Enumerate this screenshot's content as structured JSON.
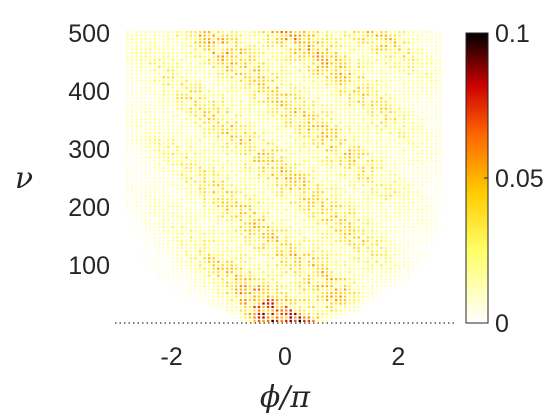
{
  "chart_data": {
    "type": "heatmap",
    "title": "",
    "xlabel": "ϕ/π",
    "ylabel": "ν",
    "xlim": [
      -3,
      3
    ],
    "ylim": [
      0,
      500
    ],
    "xticks": [
      -2,
      0,
      2
    ],
    "yticks": [
      100,
      200,
      300,
      400,
      500
    ],
    "xtick_labels": [
      "-2",
      "0",
      "2"
    ],
    "ytick_labels": [
      "100",
      "200",
      "300",
      "400",
      "500"
    ],
    "colorbar": {
      "range": [
        0,
        0.1
      ],
      "ticks": [
        0,
        0.05,
        0.1
      ],
      "tick_labels": [
        "0",
        "0.05",
        "0.1"
      ],
      "colormap": "hot (reversed)",
      "colors": [
        "#ffffff",
        "#ffff66",
        "#ffcc00",
        "#ff6600",
        "#cc0000",
        "#000000"
      ]
    },
    "reference_line": {
      "style": "dotted",
      "y": 0
    },
    "description_grid": {
      "x_support": [
        -2.8,
        2.8
      ],
      "rows": [
        {
          "nu": 5,
          "peak": 0.1,
          "width": 0.7
        },
        {
          "nu": 20,
          "peak": 0.07,
          "width": 1.0
        },
        {
          "nu": 40,
          "peak": 0.06,
          "width": 1.3
        },
        {
          "nu": 60,
          "peak": 0.05,
          "width": 1.6
        },
        {
          "nu": 80,
          "peak": 0.045,
          "width": 1.8
        },
        {
          "nu": 100,
          "peak": 0.045,
          "width": 2.0
        },
        {
          "nu": 150,
          "peak": 0.04,
          "width": 2.2
        },
        {
          "nu": 200,
          "peak": 0.04,
          "width": 2.4
        },
        {
          "nu": 250,
          "peak": 0.04,
          "width": 2.5
        },
        {
          "nu": 300,
          "peak": 0.04,
          "width": 2.6
        },
        {
          "nu": 350,
          "peak": 0.04,
          "width": 2.7
        },
        {
          "nu": 400,
          "peak": 0.04,
          "width": 2.7
        },
        {
          "nu": 450,
          "peak": 0.045,
          "width": 2.8
        },
        {
          "nu": 495,
          "peak": 0.05,
          "width": 2.8
        }
      ]
    }
  }
}
